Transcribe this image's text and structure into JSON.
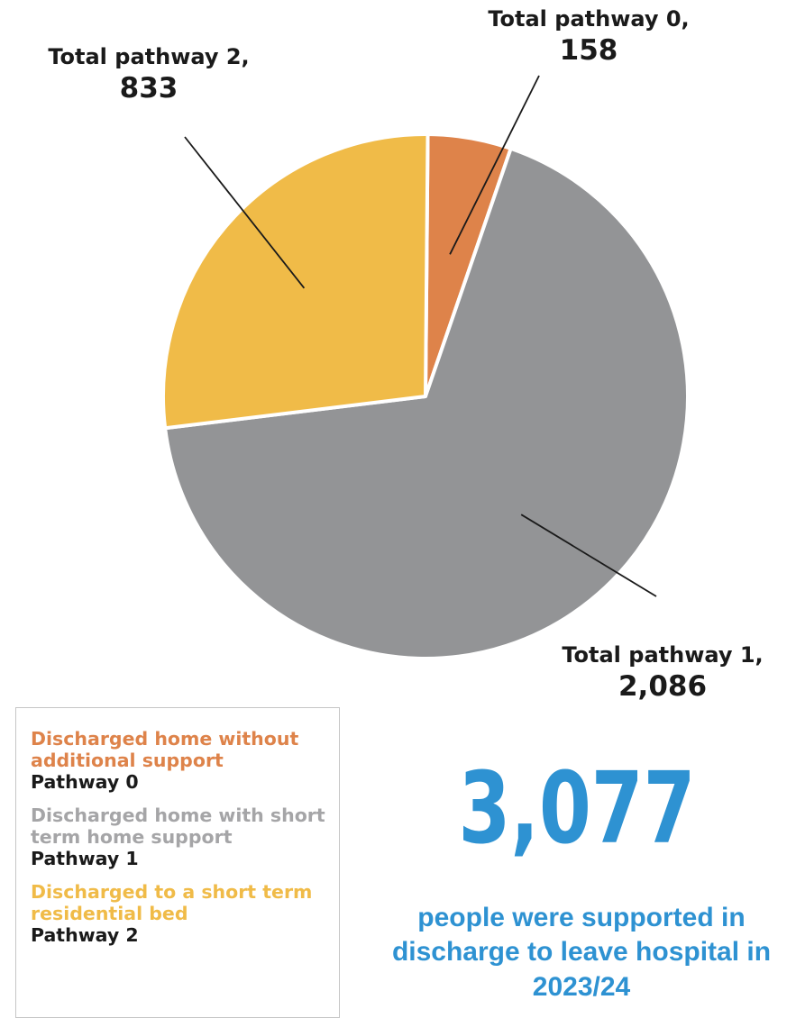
{
  "chart_data": {
    "type": "pie",
    "slices": [
      {
        "key": "p0",
        "label": "Total pathway 0,",
        "value": 158,
        "value_text": "158",
        "color": "#DE834A"
      },
      {
        "key": "p1",
        "label": "Total pathway 1,",
        "value": 2086,
        "value_text": "2,086",
        "color": "#939496"
      },
      {
        "key": "p2",
        "label": "Total pathway 2,",
        "value": 833,
        "value_text": "833",
        "color": "#F0BB48"
      }
    ]
  },
  "legend": {
    "items": [
      {
        "description": "Discharged home without additional support",
        "pathway": "Pathway 0",
        "color": "#DE834A"
      },
      {
        "description": "Discharged home with short term home support",
        "pathway": "Pathway 1",
        "color": "#A5A5A7"
      },
      {
        "description": "Discharged to a short term residential bed",
        "pathway": "Pathway 2",
        "color": "#F0BB48"
      }
    ]
  },
  "headline": {
    "number": "3,077",
    "caption": "people were supported in discharge to leave hospital in 2023/24",
    "color": "#2E92D2"
  }
}
